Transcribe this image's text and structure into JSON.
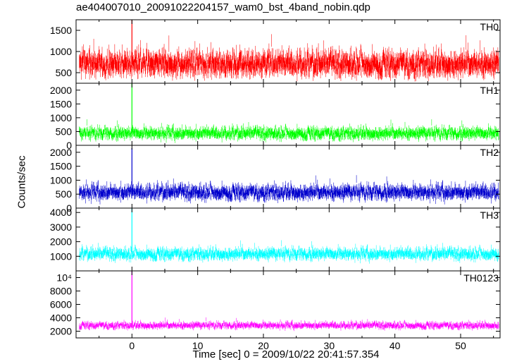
{
  "chart_data": {
    "type": "line",
    "title": "ae404007010_20091022204157_wam0_bst_4band_nobin.qdp",
    "xlabel": "Time [sec] 0 = 2009/10/22 20:41:57.354",
    "ylabel": "Counts/sec",
    "xlim": [
      -8.5,
      56
    ],
    "x_ticks": [
      0,
      10,
      20,
      30,
      40,
      50
    ],
    "x_tick_labels": [
      "0",
      "10",
      "20",
      "30",
      "40",
      "50"
    ],
    "grid": false,
    "panels": [
      {
        "name": "TH0",
        "color": "#ff0000",
        "ylim": [
          250,
          1750
        ],
        "y_ticks": [
          500,
          1000,
          1500
        ],
        "y_tick_labels": [
          "500",
          "1000",
          "1500"
        ],
        "baseline": 700,
        "noise": 190,
        "min_floor": 330,
        "spike": {
          "x": 0.0,
          "peak": 1750
        },
        "series": {
          "name": "TH0",
          "x_range": [
            -8,
            55.8
          ],
          "typical_low": 420,
          "typical_high": 1150
        }
      },
      {
        "name": "TH1",
        "color": "#00ff00",
        "ylim": [
          0,
          2250
        ],
        "y_ticks": [
          0,
          500,
          1000,
          1500,
          2000
        ],
        "y_tick_labels": [
          "0",
          "500",
          "1000",
          "1500",
          "2000"
        ],
        "baseline": 430,
        "noise": 140,
        "min_floor": 80,
        "spike": {
          "x": 0.0,
          "peak": 2250
        },
        "series": {
          "name": "TH1",
          "x_range": [
            -8,
            55.8
          ],
          "typical_low": 150,
          "typical_high": 1100
        }
      },
      {
        "name": "TH2",
        "color": "#0000cd",
        "ylim": [
          0,
          2250
        ],
        "y_ticks": [
          0,
          500,
          1000,
          1500,
          2000
        ],
        "y_tick_labels": [
          "0",
          "500",
          "1000",
          "1500",
          "2000"
        ],
        "baseline": 560,
        "noise": 170,
        "min_floor": 100,
        "spike": {
          "x": 0.0,
          "peak": 2150
        },
        "series": {
          "name": "TH2",
          "x_range": [
            -8,
            55.8
          ],
          "typical_low": 200,
          "typical_high": 1450
        }
      },
      {
        "name": "TH3",
        "color": "#00ffff",
        "ylim": [
          0,
          4300
        ],
        "y_ticks": [
          1000,
          2000,
          3000,
          4000
        ],
        "y_tick_labels": [
          "1000",
          "2000",
          "3000",
          "4000"
        ],
        "baseline": 1150,
        "noise": 260,
        "min_floor": 500,
        "spike": {
          "x": 0.0,
          "peak": 4300
        },
        "series": {
          "name": "TH3",
          "x_range": [
            -8,
            55.8
          ],
          "typical_low": 650,
          "typical_high": 2400
        }
      },
      {
        "name": "TH0123",
        "color": "#ff00ff",
        "ylim": [
          1000,
          11000
        ],
        "y_ticks": [
          2000,
          4000,
          6000,
          8000,
          10000
        ],
        "y_tick_labels": [
          "2000",
          "4000",
          "6000",
          "8000",
          "10⁴"
        ],
        "baseline": 2850,
        "noise": 330,
        "min_floor": 1900,
        "spike": {
          "x": 0.0,
          "peak": 11000
        },
        "series": {
          "name": "TH0123",
          "x_range": [
            -8,
            55.8
          ],
          "typical_low": 2100,
          "typical_high": 4800
        }
      }
    ]
  }
}
